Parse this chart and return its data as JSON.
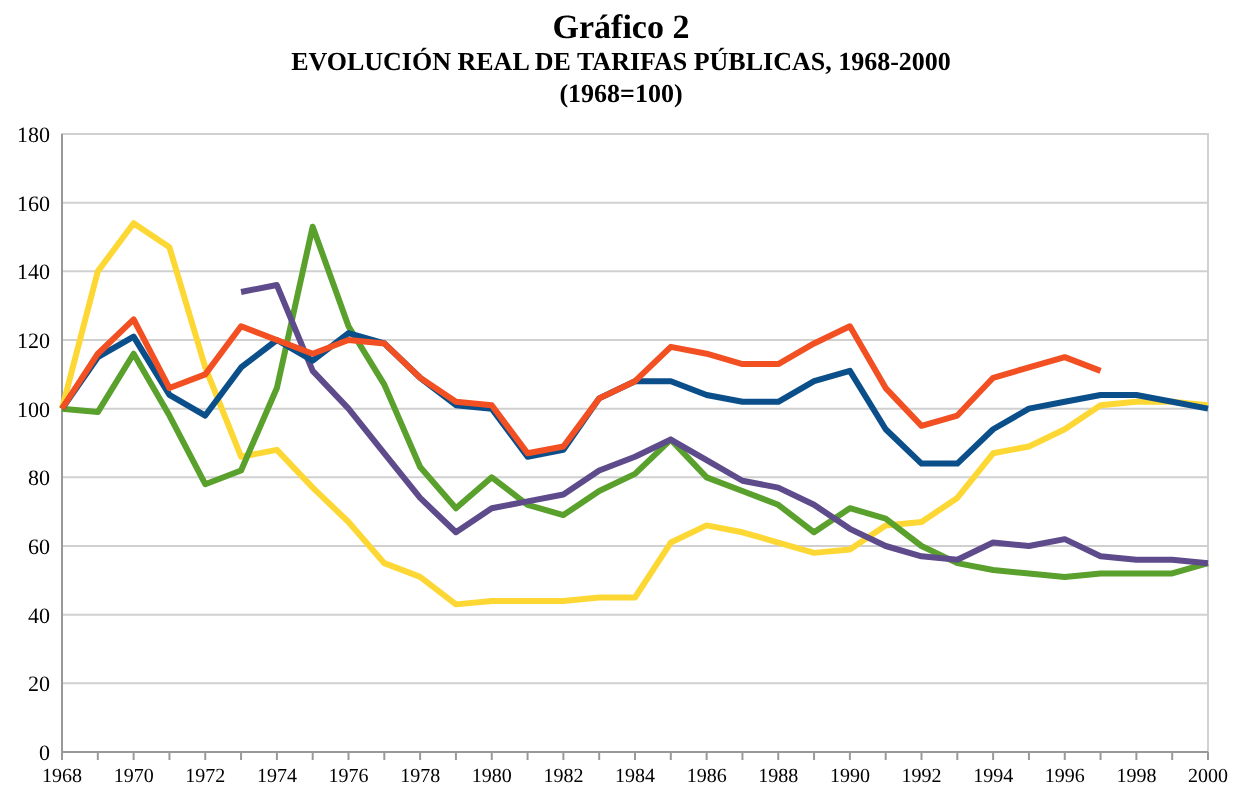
{
  "chart_data": {
    "type": "line",
    "title": "Gráfico 2",
    "subtitle": "EVOLUCIÓN REAL DE TARIFAS PÚBLICAS, 1968-2000",
    "annotations": [
      "(1968=100)"
    ],
    "x": [
      1968,
      1969,
      1970,
      1971,
      1972,
      1973,
      1974,
      1975,
      1976,
      1977,
      1978,
      1979,
      1980,
      1981,
      1982,
      1983,
      1984,
      1985,
      1986,
      1987,
      1988,
      1989,
      1990,
      1991,
      1992,
      1993,
      1994,
      1995,
      1996,
      1997,
      1998,
      1999,
      2000
    ],
    "xlim": [
      1968,
      2000
    ],
    "xticks": [
      1968,
      {
        "value": 1969,
        "label": null
      },
      1970,
      {
        "value": 1971,
        "label": null
      },
      1972,
      {
        "value": 1973,
        "label": null
      },
      1974,
      {
        "value": 1975,
        "label": null
      },
      1976,
      {
        "value": 1977,
        "label": null
      },
      1978,
      {
        "value": 1979,
        "label": null
      },
      1980,
      {
        "value": 1981,
        "label": null
      },
      1982,
      {
        "value": 1983,
        "label": null
      },
      1984,
      {
        "value": 1985,
        "label": null
      },
      1986,
      {
        "value": 1987,
        "label": null
      },
      1988,
      {
        "value": 1989,
        "label": null
      },
      1990,
      {
        "value": 1991,
        "label": null
      },
      1992,
      {
        "value": 1993,
        "label": null
      },
      1994,
      {
        "value": 1995,
        "label": null
      },
      1996,
      {
        "value": 1997,
        "label": null
      },
      1998,
      {
        "value": 1999,
        "label": null
      },
      2000
    ],
    "ylim": [
      0,
      180
    ],
    "yticks": [
      0,
      20,
      40,
      60,
      80,
      100,
      120,
      140,
      160,
      180
    ],
    "grid": "y",
    "marker": "none",
    "line_style": "solid",
    "series": [
      {
        "color": "#fdd835",
        "values": [
          100,
          140,
          154,
          147,
          112,
          86,
          88,
          77,
          67,
          55,
          51,
          43,
          44,
          44,
          44,
          45,
          45,
          61,
          66,
          64,
          61,
          58,
          59,
          66,
          67,
          74,
          87,
          89,
          94,
          101,
          102,
          102,
          101
        ]
      },
      {
        "color": "#5aa02c",
        "values": [
          100,
          99,
          116,
          98,
          78,
          82,
          106,
          153,
          124,
          107,
          83,
          71,
          80,
          72,
          69,
          76,
          81,
          91,
          80,
          76,
          72,
          64,
          71,
          68,
          60,
          55,
          53,
          52,
          51,
          52,
          52,
          52,
          55
        ]
      },
      {
        "color": "#5e4b8b",
        "values": [
          null,
          null,
          null,
          null,
          null,
          134,
          136,
          111,
          100,
          87,
          74,
          64,
          71,
          73,
          75,
          82,
          86,
          91,
          85,
          79,
          77,
          72,
          65,
          60,
          57,
          56,
          61,
          60,
          62,
          57,
          56,
          56,
          55
        ]
      },
      {
        "color": "#0b4f8a",
        "values": [
          100,
          115,
          121,
          104,
          98,
          112,
          120,
          114,
          122,
          119,
          109,
          101,
          100,
          86,
          88,
          103,
          108,
          108,
          104,
          102,
          102,
          108,
          111,
          94,
          84,
          84,
          94,
          100,
          102,
          104,
          104,
          102,
          100
        ]
      },
      {
        "color": "#f25022",
        "values": [
          100,
          116,
          126,
          106,
          110,
          124,
          120,
          116,
          120,
          119,
          109,
          102,
          101,
          87,
          89,
          103,
          108,
          118,
          116,
          113,
          113,
          119,
          124,
          106,
          95,
          98,
          109,
          112,
          115,
          111,
          null,
          null,
          null
        ]
      }
    ]
  }
}
